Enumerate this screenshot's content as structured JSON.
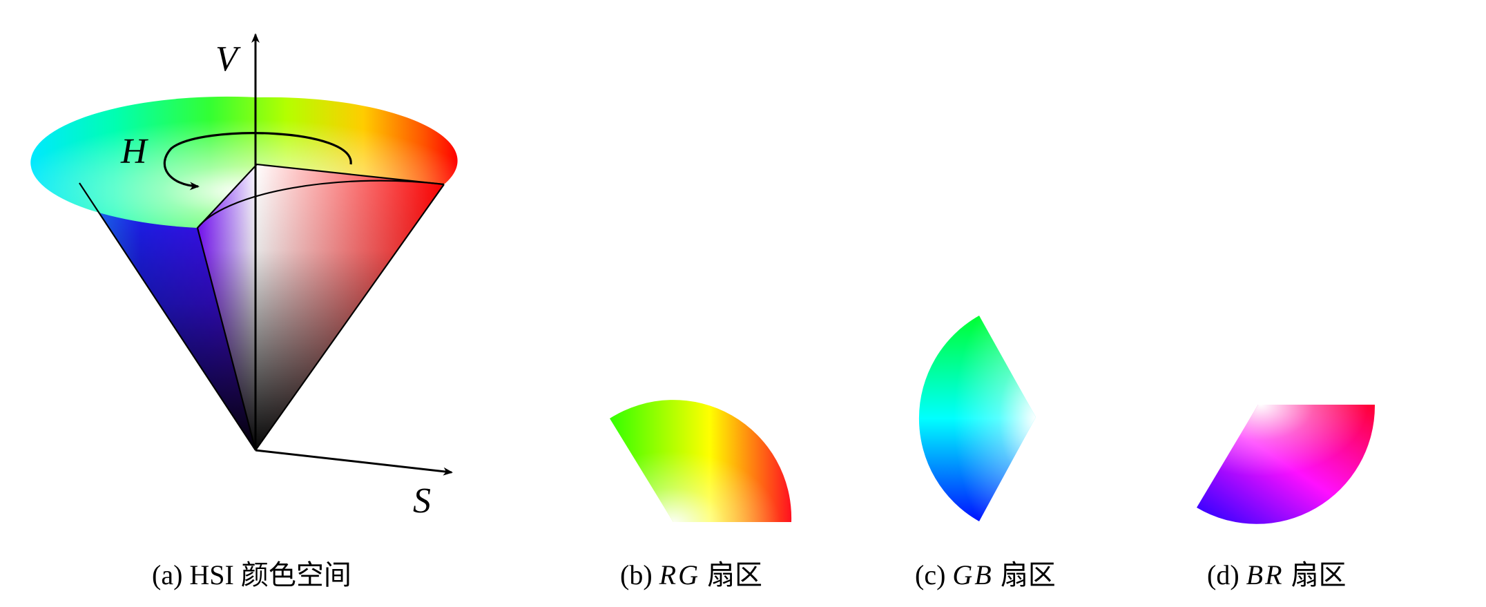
{
  "figure": {
    "panels": [
      {
        "id": "a",
        "prefix": "(a)",
        "math": "",
        "text": "HSI 颜色空间"
      },
      {
        "id": "b",
        "prefix": "(b)",
        "math": "RG",
        "text": "扇区"
      },
      {
        "id": "c",
        "prefix": "(c)",
        "math": "GB",
        "text": "扇区"
      },
      {
        "id": "d",
        "prefix": "(d)",
        "math": "BR",
        "text": "扇区"
      }
    ],
    "axes": {
      "v": "V",
      "h": "H",
      "s": "S"
    },
    "colors": {
      "red": "#ff0000",
      "yellow": "#ffff00",
      "green": "#00ff00",
      "cyan": "#00ffff",
      "blue": "#0000ff",
      "magenta": "#ff00ff",
      "white": "#ffffff",
      "black": "#000000"
    }
  }
}
